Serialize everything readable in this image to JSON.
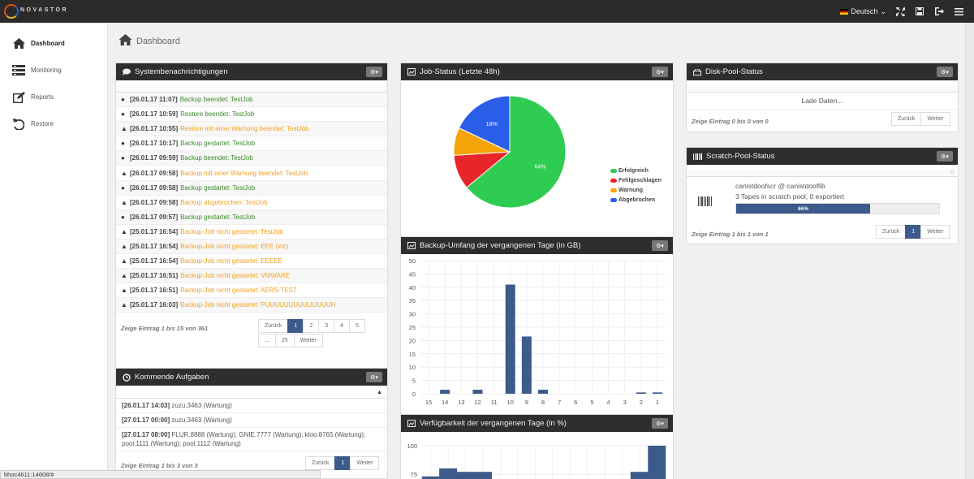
{
  "brand": {
    "logo_text": "NOVASTOR"
  },
  "topbar": {
    "language": "Deutsch"
  },
  "sidebar": {
    "items": [
      {
        "label": "Dashboard",
        "icon": "home-icon",
        "active": true
      },
      {
        "label": "Monitoring",
        "icon": "monitor-icon",
        "active": false
      },
      {
        "label": "Reports",
        "icon": "edit-icon",
        "active": false
      },
      {
        "label": "Restore",
        "icon": "undo-icon",
        "active": false
      }
    ]
  },
  "page": {
    "title": "Dashboard"
  },
  "notifications": {
    "title": "Systembenachrichtigungen",
    "rows": [
      {
        "type": "info",
        "time": "[26.01.17 11:07]",
        "text": "Backup beendet: TestJob",
        "color": "green"
      },
      {
        "type": "info",
        "time": "[26.01.17 10:59]",
        "text": "Restore beendet: TestJob",
        "color": "green"
      },
      {
        "type": "warn",
        "time": "[26.01.17 10:55]",
        "text": "Restore mit einer Warnung beendet: TestJob",
        "color": "orange"
      },
      {
        "type": "info",
        "time": "[26.01.17 10:17]",
        "text": "Backup gestartet: TestJob",
        "color": "green"
      },
      {
        "type": "info",
        "time": "[26.01.17 09:59]",
        "text": "Backup beendet: TestJob",
        "color": "green"
      },
      {
        "type": "warn",
        "time": "[26.01.17 09:58]",
        "text": "Backup mit einer Warnung beendet: TestJob",
        "color": "orange"
      },
      {
        "type": "info",
        "time": "[26.01.17 09:58]",
        "text": "Backup gestartet: TestJob",
        "color": "green"
      },
      {
        "type": "warn",
        "time": "[26.01.17 09:58]",
        "text": "Backup abgebrochen: TestJob",
        "color": "orange"
      },
      {
        "type": "info",
        "time": "[26.01.17 09:57]",
        "text": "Backup gestartet: TestJob",
        "color": "green"
      },
      {
        "type": "warn",
        "time": "[25.01.17 16:54]",
        "text": "Backup-Job nicht gestartet: TestJob",
        "color": "orange"
      },
      {
        "type": "warn",
        "time": "[25.01.17 16:54]",
        "text": "Backup-Job nicht gestartet: EEE (inc)",
        "color": "orange"
      },
      {
        "type": "warn",
        "time": "[25.01.17 16:54]",
        "text": "Backup-Job nicht gestartet: EEEEE",
        "color": "orange"
      },
      {
        "type": "warn",
        "time": "[25.01.17 16:51]",
        "text": "Backup-Job nicht gestartet: VMWARE",
        "color": "orange"
      },
      {
        "type": "warn",
        "time": "[25.01.17 16:51]",
        "text": "Backup-Job nicht gestartet: AERS-TEST",
        "color": "orange"
      },
      {
        "type": "warn",
        "time": "[25.01.17 16:03]",
        "text": "Backup-Job nicht gestartet: PUUUUUUUUUUUUUUH",
        "color": "orange"
      }
    ],
    "info": "Zeige Eintrag 1 bis 15 von 361",
    "pager_row1": [
      "Zurück",
      "1",
      "2",
      "3",
      "4",
      "5"
    ],
    "pager_row2": [
      "...",
      "25",
      "Weiter"
    ]
  },
  "tasks": {
    "title": "Kommende Aufgaben",
    "rows": [
      {
        "time": "[26.01.17 14:03]",
        "text": "zuzu.3463 (Wartung)"
      },
      {
        "time": "[27.01.17 00:00]",
        "text": "zuzu.3463 (Wartung)"
      },
      {
        "time": "[27.01.17 08:00]",
        "text": "FLUR.8888 (Wartung); GNIE.7777 (Wartung); kloo.8765 (Wartung); pool.1111 (Wartung); pool.1112 (Wartung)"
      }
    ],
    "info": "Zeige Eintrag 1 bis 3 von 3",
    "pager": [
      "Zurück",
      "1",
      "Weiter"
    ]
  },
  "jobstatus": {
    "title": "Job-Status (Letzte 48h)",
    "colors": {
      "Erfolgreich": "#2ecc50",
      "Fehlgeschlagen": "#e8262a",
      "Warnung": "#f5a40a",
      "Abgebrochen": "#2a5ee8"
    },
    "legend": [
      "Erfolgreich",
      "Fehlgeschlagen",
      "Warnung",
      "Abgebrochen"
    ]
  },
  "backup": {
    "title": "Backup-Umfang der vergangenen Tage (in GB)"
  },
  "availability": {
    "title": "Verfügbarkeit der vergangenen Tage (in %)"
  },
  "diskpool": {
    "title": "Disk-Pool-Status",
    "loading": "Lade Daten...",
    "info": "Zeige Eintrag 0 bis 0 von 0",
    "pager": [
      "Zurück",
      "Weiter"
    ]
  },
  "scratchpool": {
    "title": "Scratch-Pool-Status",
    "name": "canistdoofscr @ canistdooflib",
    "detail": "3 Tapes in scratch pool, 0 exportiert",
    "progress_percent": 66,
    "progress_label": "66%",
    "info": "Zeige Eintrag 1 bis 1 von 1",
    "pager": [
      "Zurück",
      "1",
      "Weiter"
    ]
  },
  "statusbar": {
    "url": "bhoc4611:14608/#"
  },
  "chart_data": [
    {
      "type": "pie",
      "title": "Job-Status (Letzte 48h)",
      "categories": [
        "Erfolgreich",
        "Fehlgeschlagen",
        "Warnung",
        "Abgebrochen"
      ],
      "values": [
        64,
        10,
        8,
        18
      ],
      "data_labels": [
        "64%",
        "",
        "",
        "18%"
      ],
      "legend": "right"
    },
    {
      "type": "bar",
      "title": "Backup-Umfang der vergangenen Tage (in GB)",
      "categories": [
        "15",
        "14",
        "13",
        "12",
        "11",
        "10",
        "9",
        "8",
        "7",
        "6",
        "5",
        "4",
        "3",
        "2",
        "1"
      ],
      "values": [
        0,
        1.5,
        0,
        1.5,
        0,
        41,
        21.5,
        1.5,
        0,
        0,
        0,
        0,
        0,
        0.5,
        0.5
      ],
      "ylim": [
        0,
        50
      ],
      "yticks": [
        "50",
        "45",
        "40",
        "35",
        "30",
        "25",
        "20",
        "15",
        "10",
        "5",
        "0"
      ]
    },
    {
      "type": "bar",
      "title": "Verfügbarkeit der vergangenen Tage (in %)",
      "values": [
        73,
        80,
        77,
        77,
        0,
        0,
        0,
        0,
        0,
        0,
        0,
        0,
        77,
        100
      ],
      "ylim": [
        0,
        100
      ],
      "yticks": [
        "100",
        "75"
      ]
    }
  ]
}
